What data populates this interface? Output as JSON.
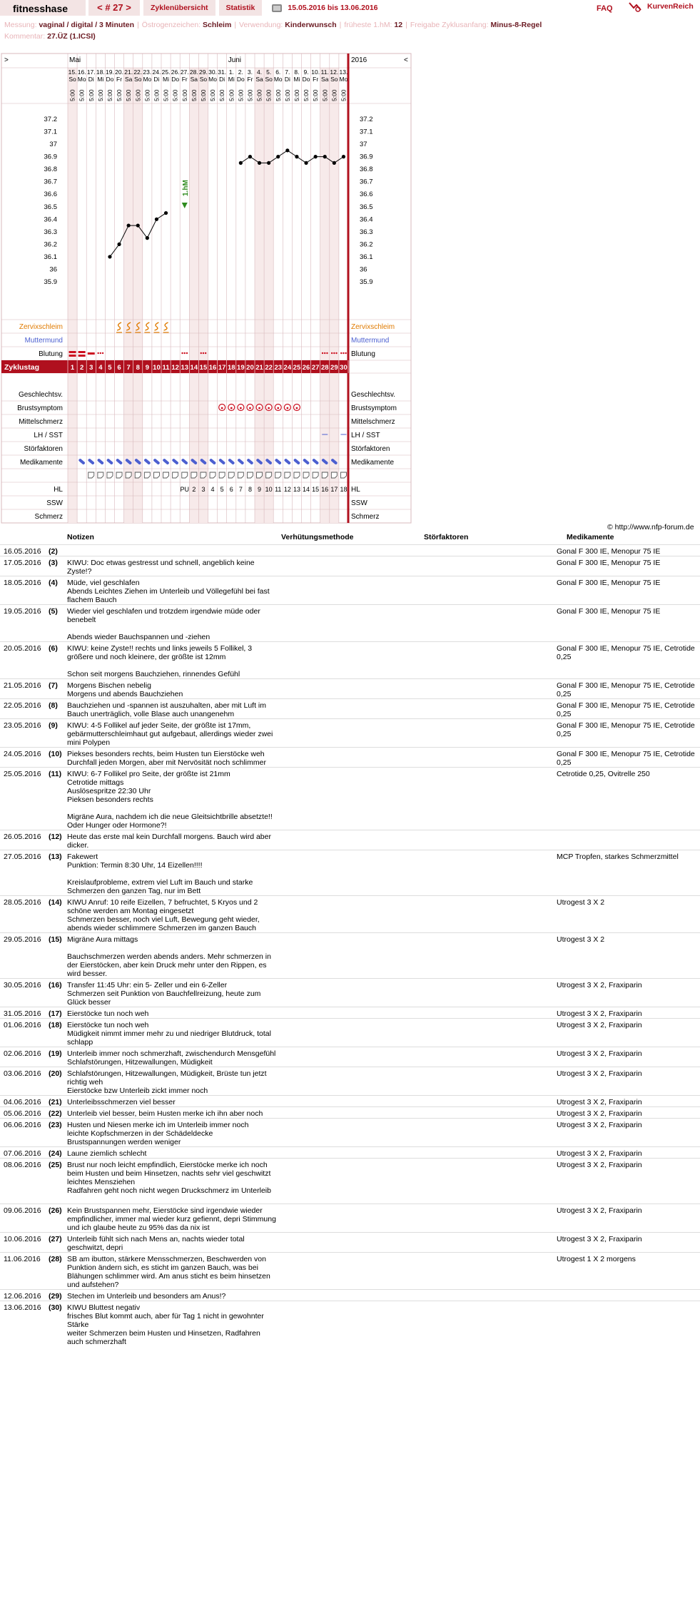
{
  "header": {
    "brand": "fitnesshase",
    "cycle": "< # 27 >",
    "overview": "Zyklenübersicht",
    "stats": "Statistik",
    "date_range": "15.05.2016 bis 13.06.2016",
    "faq": "FAQ",
    "logo_text": "KurvenReich"
  },
  "info": {
    "messung_k": "Messung:",
    "messung_v": "vaginal / digital / 3 Minuten",
    "oestro_k": "Östrogenzeichen:",
    "oestro_v": "Schleim",
    "verw_k": "Verwendung:",
    "verw_v": "Kinderwunsch",
    "hm_k": "früheste 1.hM:",
    "hm_v": "12",
    "freig_k": "Freigabe Zyklusanfang:",
    "freig_v": "Minus-8-Regel",
    "komm_k": "Kommentar:",
    "komm_v": "27.ÜZ (1.ICSI)"
  },
  "chart_data": {
    "type": "line",
    "prev_arrow": ">",
    "next_arrow": "<",
    "months": [
      {
        "label": "Mai",
        "col": 0
      },
      {
        "label": "Juni",
        "col": 17
      }
    ],
    "year": "2016",
    "dates": [
      "15.",
      "16.",
      "17.",
      "18.",
      "19.",
      "20.",
      "21.",
      "22.",
      "23.",
      "24.",
      "25.",
      "26.",
      "27.",
      "28.",
      "29.",
      "30.",
      "31.",
      "1.",
      "2.",
      "3.",
      "4.",
      "5.",
      "6.",
      "7.",
      "8.",
      "9.",
      "10.",
      "11.",
      "12.",
      "13."
    ],
    "weekdays": [
      "So",
      "Mo",
      "Di",
      "Mi",
      "Do",
      "Fr",
      "Sa",
      "So",
      "Mo",
      "Di",
      "Mi",
      "Do",
      "Fr",
      "Sa",
      "So",
      "Mo",
      "Di",
      "Mi",
      "Do",
      "Fr",
      "Sa",
      "So",
      "Mo",
      "Di",
      "Mi",
      "Do",
      "Fr",
      "Sa",
      "So",
      "Mo"
    ],
    "time": "5:00",
    "weekend_cols": [
      0,
      6,
      7,
      13,
      14,
      20,
      21,
      27,
      28
    ],
    "y_ticks": [
      "37.2",
      "37.1",
      "37",
      "36.9",
      "36.8",
      "36.7",
      "36.6",
      "36.5",
      "36.4",
      "36.3",
      "36.2",
      "36.1",
      "36",
      "35.9"
    ],
    "ylim": [
      35.9,
      37.2
    ],
    "temps": [
      null,
      null,
      null,
      null,
      36.1,
      36.2,
      36.35,
      36.35,
      36.25,
      36.4,
      36.45,
      null,
      null,
      null,
      null,
      null,
      null,
      null,
      36.85,
      36.9,
      36.85,
      36.85,
      36.9,
      36.95,
      36.9,
      36.85,
      36.9,
      36.9,
      36.85,
      36.9
    ],
    "hm_label": "1.hM",
    "hm_col": 12,
    "rows_left": {
      "zervix": "Zervixschleim",
      "mumu": "Muttermund",
      "blutung": "Blutung",
      "zyklustag": "Zyklustag",
      "gv": "Geschlechtsv.",
      "brust": "Brustsymptom",
      "mittel": "Mittelschmerz",
      "lh": "LH / SST",
      "stoer": "Störfaktoren",
      "medi": "Medikamente",
      "notizen": "Notizen",
      "hl": "HL",
      "ssw": "SSW",
      "schmerz": "Schmerz"
    },
    "zervix_cols": [
      5,
      6,
      7,
      8,
      9,
      10
    ],
    "bleeding": {
      "0": "heavy",
      "1": "heavy",
      "2": "medium",
      "3": "spot",
      "12": "spot",
      "14": "spot",
      "27": "spot",
      "28": "spot",
      "29": "spot"
    },
    "cycle_days": [
      "1",
      "2",
      "3",
      "4",
      "5",
      "6",
      "7",
      "8",
      "9",
      "10",
      "11",
      "12",
      "13",
      "14",
      "15",
      "16",
      "17",
      "18",
      "19",
      "20",
      "21",
      "22",
      "23",
      "24",
      "25",
      "26",
      "27",
      "28",
      "29",
      "30"
    ],
    "brust_cols": [
      16,
      17,
      18,
      19,
      20,
      21,
      22,
      23,
      24
    ],
    "lh_cols": [
      27,
      29
    ],
    "medi_cols": [
      1,
      2,
      3,
      4,
      5,
      6,
      7,
      8,
      9,
      10,
      11,
      12,
      13,
      14,
      15,
      16,
      17,
      18,
      19,
      20,
      21,
      22,
      23,
      24,
      25,
      26,
      27,
      28
    ],
    "notiz_cols": [
      2,
      3,
      4,
      5,
      6,
      7,
      8,
      9,
      10,
      11,
      12,
      13,
      14,
      15,
      16,
      17,
      18,
      19,
      20,
      21,
      22,
      23,
      24,
      25,
      26,
      27,
      28,
      29
    ],
    "hl": [
      "",
      "",
      "",
      "",
      "",
      "",
      "",
      "",
      "",
      "",
      "",
      "",
      "PU",
      "2",
      "3",
      "4",
      "5",
      "6",
      "7",
      "8",
      "9",
      "10",
      "11",
      "12",
      "13",
      "14",
      "15",
      "16",
      "17",
      "18"
    ],
    "colors": {
      "brand": "#b0101e",
      "zervix": "#e07a00",
      "mumu": "#4c5fd0",
      "bleed": "#cc1020",
      "grid": "#d8b8bc",
      "weekend": "#f7eaea",
      "temp": "#000",
      "hm": "#2e8b1e"
    }
  },
  "copyright": "© http://www.nfp-forum.de",
  "table": {
    "headers": {
      "notes": "Notizen",
      "method": "Verhütungsmethode",
      "factors": "Störfaktoren",
      "meds": "Medikamente"
    },
    "rows": [
      {
        "date": "16.05.2016",
        "day": "(2)",
        "note": "",
        "meds": "Gonal F 300 IE, Menopur 75 IE"
      },
      {
        "date": "17.05.2016",
        "day": "(3)",
        "note": "KIWU: Doc etwas gestresst und schnell, angeblich keine Zyste!?",
        "meds": "Gonal F 300 IE, Menopur 75 IE"
      },
      {
        "date": "18.05.2016",
        "day": "(4)",
        "note": "Müde, viel geschlafen\nAbends Leichtes Ziehen im Unterleib und Völlegefühl bei fast flachem Bauch",
        "meds": "Gonal F 300 IE, Menopur 75 IE"
      },
      {
        "date": "19.05.2016",
        "day": "(5)",
        "note": "Wieder viel geschlafen und trotzdem irgendwie müde oder benebelt\n\nAbends wieder Bauchspannen und -ziehen",
        "meds": "Gonal F 300 IE, Menopur 75 IE"
      },
      {
        "date": "20.05.2016",
        "day": "(6)",
        "note": "KIWU: keine Zyste!! rechts und links jeweils 5 Follikel, 3 größere und noch kleinere, der größte ist 12mm\n\nSchon seit morgens Bauchziehen, rinnendes Gefühl",
        "meds": "Gonal F 300 IE, Menopur 75 IE, Cetrotide 0,25"
      },
      {
        "date": "21.05.2016",
        "day": "(7)",
        "note": "Morgens Bischen nebelig\nMorgens und abends Bauchziehen",
        "meds": "Gonal F 300 IE, Menopur 75 IE, Cetrotide 0,25"
      },
      {
        "date": "22.05.2016",
        "day": "(8)",
        "note": "Bauchziehen und -spannen ist auszuhalten, aber mit Luft im Bauch unerträglich, volle Blase auch unangenehm",
        "meds": "Gonal F 300 IE, Menopur 75 IE, Cetrotide 0,25"
      },
      {
        "date": "23.05.2016",
        "day": "(9)",
        "note": "KIWU: 4-5 Follikel auf jeder Seite, der größte ist 17mm, gebärmutterschleimhaut gut aufgebaut, allerdings wieder zwei mini Polypen",
        "meds": "Gonal F 300 IE, Menopur 75 IE, Cetrotide 0,25"
      },
      {
        "date": "24.05.2016",
        "day": "(10)",
        "note": "Piekses besonders rechts, beim Husten tun Eierstöcke weh\nDurchfall jeden Morgen, aber mit Nervösität noch schlimmer",
        "meds": "Gonal F 300 IE, Menopur 75 IE, Cetrotide 0,25"
      },
      {
        "date": "25.05.2016",
        "day": "(11)",
        "note": "KIWU: 6-7 Follikel pro Seite, der größte ist 21mm\nCetrotide mittags\nAuslösespritze 22:30 Uhr\nPieksen besonders rechts\n\nMigräne Aura, nachdem ich die neue Gleitsichtbrille absetzte!! Oder Hunger oder Hormone?!",
        "meds": "Cetrotide 0,25, Ovitrelle 250"
      },
      {
        "date": "26.05.2016",
        "day": "(12)",
        "note": "Heute das erste mal kein Durchfall morgens. Bauch wird aber dicker.",
        "meds": ""
      },
      {
        "date": "27.05.2016",
        "day": "(13)",
        "note": "Fakewert\nPunktion: Termin 8:30 Uhr, 14 Eizellen!!!!\n\nKreislaufprobleme, extrem viel Luft im Bauch und starke Schmerzen den ganzen Tag, nur im Bett",
        "meds": "MCP Tropfen, starkes Schmerzmittel"
      },
      {
        "date": "28.05.2016",
        "day": "(14)",
        "note": "KIWU Anruf: 10 reife Eizellen, 7 befruchtet, 5 Kryos und 2 schöne werden am Montag eingesetzt\nSchmerzen besser, noch viel Luft, Bewegung geht wieder, abends wieder schlimmere Schmerzen im ganzen Bauch",
        "meds": "Utrogest 3 X 2"
      },
      {
        "date": "29.05.2016",
        "day": "(15)",
        "note": "Migräne Aura mittags\n\nBauchschmerzen werden abends anders. Mehr schmerzen in der Eierstöcken, aber kein Druck mehr unter den Rippen, es wird besser.",
        "meds": "Utrogest 3 X 2"
      },
      {
        "date": "30.05.2016",
        "day": "(16)",
        "note": "Transfer 11:45 Uhr: ein 5- Zeller und ein 6-Zeller\nSchmerzen seit Punktion von Bauchfellreizung, heute zum Glück besser",
        "meds": "Utrogest 3 X 2, Fraxiparin"
      },
      {
        "date": "31.05.2016",
        "day": "(17)",
        "note": "Eierstöcke tun noch weh",
        "meds": "Utrogest 3 X 2, Fraxiparin"
      },
      {
        "date": "01.06.2016",
        "day": "(18)",
        "note": "Eierstöcke tun noch weh\nMüdigkeit nimmt immer mehr zu und niedriger Blutdruck, total schlapp",
        "meds": "Utrogest 3 X 2, Fraxiparin"
      },
      {
        "date": "02.06.2016",
        "day": "(19)",
        "note": "Unterleib immer noch schmerzhaft, zwischendurch Mensgefühl\nSchlafstörungen, Hitzewallungen, Müdigkeit",
        "meds": "Utrogest 3 X 2, Fraxiparin"
      },
      {
        "date": "03.06.2016",
        "day": "(20)",
        "note": "Schlafstörungen, Hitzewallungen, Müdigkeit, Brüste tun jetzt richtig weh\nEierstöcke bzw Unterleib zickt immer noch",
        "meds": "Utrogest 3 X 2, Fraxiparin"
      },
      {
        "date": "04.06.2016",
        "day": "(21)",
        "note": "Unterleibsschmerzen viel besser",
        "meds": "Utrogest 3 X 2, Fraxiparin"
      },
      {
        "date": "05.06.2016",
        "day": "(22)",
        "note": "Unterleib viel besser, beim Husten merke ich ihn aber noch",
        "meds": "Utrogest 3 X 2, Fraxiparin"
      },
      {
        "date": "06.06.2016",
        "day": "(23)",
        "note": "Husten und Niesen merke ich im Unterleib immer noch\nleichte Kopfschmerzen in der Schädeldecke\nBrustspannungen werden weniger",
        "meds": "Utrogest 3 X 2, Fraxiparin"
      },
      {
        "date": "07.06.2016",
        "day": "(24)",
        "note": "Laune ziemlich schlecht",
        "meds": "Utrogest 3 X 2, Fraxiparin"
      },
      {
        "date": "08.06.2016",
        "day": "(25)",
        "note": "Brust nur noch leicht empfindlich, Eierstöcke merke ich noch beim Husten und beim Hinsetzen, nachts sehr viel geschwitzt\nleichtes Mensziehen\nRadfahren geht noch nicht wegen Druckschmerz im Unterleib",
        "meds": "Utrogest 3 X 2, Fraxiparin"
      },
      {
        "date": "09.06.2016",
        "day": "(26)",
        "note": "Kein Brustspannen mehr, Eierstöcke sind irgendwie wieder empfindlicher, immer mal wieder kurz gefiennt, depri Stimmung und ich glaube heute zu 95% das da nix ist",
        "meds": "Utrogest 3 X 2, Fraxiparin"
      },
      {
        "date": "10.06.2016",
        "day": "(27)",
        "note": "Unterleib fühlt sich nach Mens an, nachts wieder total geschwitzt, depri",
        "meds": "Utrogest 3 X 2, Fraxiparin"
      },
      {
        "date": "11.06.2016",
        "day": "(28)",
        "note": "SB am ibutton, stärkere Mensschmerzen, Beschwerden von Punktion ändern sich, es sticht im ganzen Bauch, was bei Blähungen schlimmer wird. Am anus sticht es beim hinsetzen und aufstehen?",
        "meds": "Utrogest 1 X 2 morgens"
      },
      {
        "date": "12.06.2016",
        "day": "(29)",
        "note": "Stechen im Unterleib und besonders am Anus!?",
        "meds": ""
      },
      {
        "date": "13.06.2016",
        "day": "(30)",
        "note": "KIWU Bluttest negativ\nfrisches Blut kommt auch, aber für Tag 1 nicht in gewohnter Stärke\nweiter Schmerzen beim Husten und Hinsetzen, Radfahren auch schmerzhaft",
        "meds": ""
      }
    ]
  }
}
